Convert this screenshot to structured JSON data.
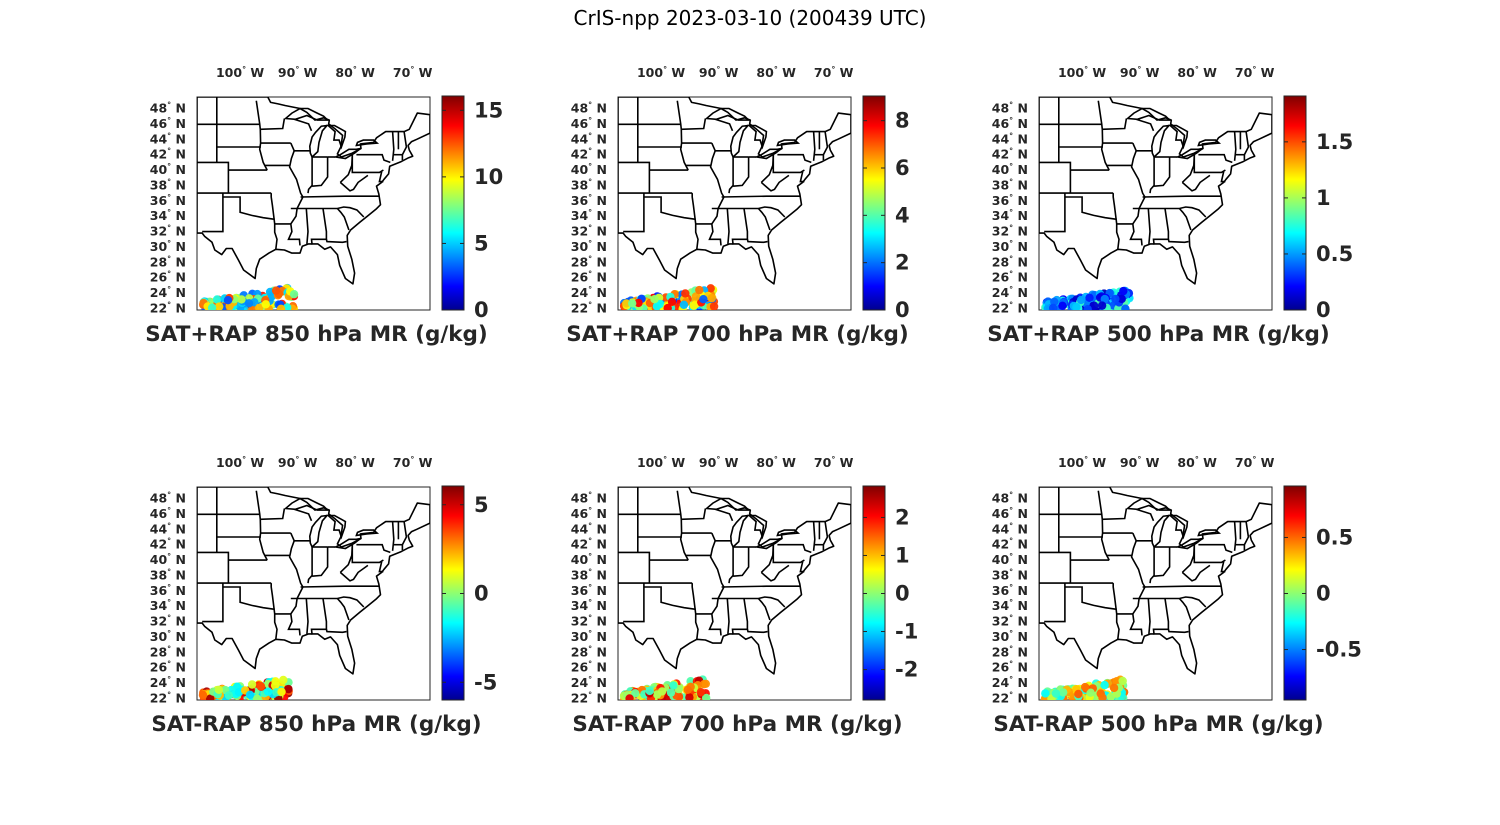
{
  "figure_title": "CrIS-npp 2023-03-10 (200439 UTC)",
  "map": {
    "lon_labels": [
      "100° W",
      "90° W",
      "80° W",
      "70° W"
    ],
    "lon_values": [
      -100,
      -90,
      -80,
      -70
    ],
    "lat_labels": [
      "48° N",
      "46° N",
      "44° N",
      "42° N",
      "40° N",
      "38° N",
      "36° N",
      "34° N",
      "32° N",
      "30° N",
      "28° N",
      "26° N",
      "24° N",
      "22° N"
    ],
    "lat_values": [
      48,
      46,
      44,
      42,
      40,
      38,
      36,
      34,
      32,
      30,
      28,
      26,
      24,
      22
    ],
    "lon_range": [
      -107.5,
      -67
    ],
    "lat_range": [
      21.8,
      49.5
    ]
  },
  "chart_data": [
    {
      "type": "heatmap",
      "title": "SAT+RAP 850 hPa MR (g/kg)",
      "colorbar": {
        "ticks": [
          "0",
          "5",
          "10",
          "15"
        ],
        "tick_values": [
          0,
          5,
          10,
          15
        ],
        "range": [
          0,
          16
        ]
      },
      "observation_band": {
        "lon_range": [
          -106.5,
          -90.5
        ],
        "lat_range": [
          21.9,
          24.8
        ],
        "value_range": [
          3,
          14
        ]
      }
    },
    {
      "type": "heatmap",
      "title": "SAT+RAP 700 hPa MR (g/kg)",
      "colorbar": {
        "ticks": [
          "0",
          "2",
          "4",
          "6",
          "8"
        ],
        "tick_values": [
          0,
          2,
          4,
          6,
          8
        ],
        "range": [
          0,
          9
        ]
      },
      "observation_band": {
        "lon_range": [
          -106.5,
          -90.5
        ],
        "lat_range": [
          21.9,
          24.8
        ],
        "value_range": [
          1,
          8
        ]
      }
    },
    {
      "type": "heatmap",
      "title": "SAT+RAP 500 hPa MR (g/kg)",
      "colorbar": {
        "ticks": [
          "0",
          "0.5",
          "1",
          "1.5"
        ],
        "tick_values": [
          0,
          0.5,
          1,
          1.5
        ],
        "range": [
          0,
          1.9
        ]
      },
      "observation_band": {
        "lon_range": [
          -106.5,
          -91.5
        ],
        "lat_range": [
          21.9,
          24.6
        ],
        "value_range": [
          0.1,
          0.9
        ]
      }
    },
    {
      "type": "heatmap",
      "title": "SAT-RAP 850 hPa MR (g/kg)",
      "colorbar": {
        "ticks": [
          "-5",
          "0",
          "5"
        ],
        "tick_values": [
          -5,
          0,
          5
        ],
        "range": [
          -6,
          6
        ]
      },
      "observation_band": {
        "lon_range": [
          -106.5,
          -91.5
        ],
        "lat_range": [
          21.9,
          24.6
        ],
        "value_range": [
          -2,
          6
        ]
      }
    },
    {
      "type": "heatmap",
      "title": "SAT-RAP 700 hPa MR (g/kg)",
      "colorbar": {
        "ticks": [
          "-2",
          "-1",
          "0",
          "1",
          "2"
        ],
        "tick_values": [
          -2,
          -1,
          0,
          1,
          2
        ],
        "range": [
          -2.8,
          2.8
        ]
      },
      "observation_band": {
        "lon_range": [
          -106.5,
          -92
        ],
        "lat_range": [
          21.9,
          24.6
        ],
        "value_range": [
          -0.5,
          2.5
        ]
      }
    },
    {
      "type": "heatmap",
      "title": "SAT-RAP 500 hPa MR (g/kg)",
      "colorbar": {
        "ticks": [
          "-0.5",
          "0",
          "0.5"
        ],
        "tick_values": [
          -0.5,
          0,
          0.5
        ],
        "range": [
          -0.95,
          0.95
        ]
      },
      "observation_band": {
        "lon_range": [
          -106.5,
          -92.5
        ],
        "lat_range": [
          21.9,
          24.6
        ],
        "value_range": [
          -0.3,
          0.6
        ]
      }
    }
  ]
}
